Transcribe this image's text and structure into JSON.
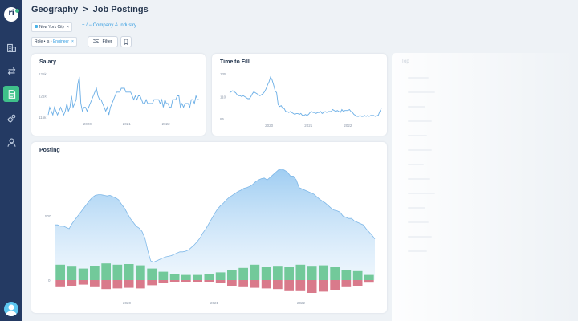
{
  "breadcrumb": {
    "section": "Geography",
    "separator": ">",
    "page": "Job Postings"
  },
  "filters": {
    "location_chip": "New York City",
    "add_link": "+ / − Company & Industry",
    "role_chip_prefix": "Role • is •",
    "role_chip_value": "Engineer",
    "remove_symbol": "×"
  },
  "toolbar": {
    "filter_label": "Filter"
  },
  "cards": {
    "salary": {
      "title": "Salary",
      "chart_data": {
        "type": "line",
        "y_ticks": [
          "125k",
          "121k",
          "115k"
        ],
        "x_ticks": [
          "2020",
          "2021",
          "2022"
        ],
        "color": "#6aaee6",
        "values": [
          116,
          118,
          117,
          116,
          118,
          117,
          116,
          117,
          118,
          117,
          116,
          117,
          119,
          117,
          118,
          121,
          118,
          119,
          120,
          124,
          126,
          119,
          117,
          118,
          118,
          117,
          118,
          119,
          120,
          121,
          122,
          123,
          121,
          120,
          120,
          119,
          118,
          117,
          118,
          116,
          118,
          119,
          120,
          121,
          122,
          122,
          122,
          123,
          123,
          123,
          122,
          122,
          122,
          122,
          121,
          120,
          121,
          120,
          121,
          121,
          120,
          119,
          119,
          120,
          119,
          119,
          119,
          119,
          120,
          120,
          120,
          120,
          119,
          120,
          118,
          120,
          119,
          119,
          118,
          118,
          120,
          120,
          120,
          121,
          121,
          118,
          119,
          118,
          119,
          119,
          119,
          118,
          120,
          120,
          119,
          121,
          120,
          120
        ]
      }
    },
    "time_to_fill": {
      "title": "Time to Fill",
      "chart_data": {
        "type": "line",
        "y_ticks": [
          "135",
          "110",
          "85"
        ],
        "x_ticks": [
          "2020",
          "2021",
          "2022"
        ],
        "color": "#6aaee6",
        "values": [
          116,
          117,
          118,
          117,
          116,
          114,
          113,
          113,
          112,
          113,
          112,
          111,
          110,
          110,
          112,
          115,
          117,
          116,
          115,
          114,
          113,
          114,
          115,
          117,
          120,
          124,
          127,
          132,
          129,
          124,
          118,
          116,
          104,
          102,
          103,
          100,
          100,
          97,
          97,
          96,
          97,
          96,
          95,
          94,
          95,
          95,
          94,
          95,
          93,
          93,
          94,
          93,
          94,
          96,
          97,
          96,
          96,
          95,
          96,
          96,
          97,
          95,
          96,
          97,
          96,
          97,
          97,
          97,
          99,
          98,
          97,
          98,
          97,
          96,
          99,
          97,
          98,
          98,
          98,
          99,
          97,
          96,
          94,
          93,
          92,
          92,
          93,
          92,
          92,
          93,
          92,
          93,
          92,
          93,
          93,
          93,
          92,
          93,
          93,
          97,
          100
        ]
      }
    },
    "posting": {
      "title": "Posting",
      "chart_data": {
        "type": "area",
        "y_ticks": [
          "500",
          "0"
        ],
        "x_ticks": [
          "2020",
          "2021",
          "2022"
        ],
        "color": "#9fcdf2",
        "area_values": [
          430,
          430,
          420,
          420,
          410,
          400,
          440,
          470,
          500,
          530,
          560,
          590,
          620,
          645,
          660,
          665,
          665,
          660,
          655,
          660,
          650,
          640,
          625,
          590,
          560,
          520,
          480,
          450,
          420,
          405,
          380,
          330,
          230,
          150,
          140,
          150,
          160,
          170,
          180,
          185,
          190,
          200,
          210,
          220,
          220,
          225,
          235,
          255,
          275,
          300,
          330,
          370,
          400,
          440,
          480,
          520,
          555,
          580,
          600,
          625,
          645,
          660,
          675,
          690,
          700,
          715,
          720,
          730,
          745,
          765,
          780,
          790,
          795,
          780,
          800,
          820,
          840,
          860,
          865,
          855,
          840,
          810,
          810,
          780,
          720,
          710,
          700,
          690,
          680,
          670,
          650,
          630,
          615,
          600,
          580,
          560,
          545,
          540,
          530,
          500,
          490,
          480,
          480,
          460,
          450,
          440,
          430,
          400,
          375,
          350,
          320
        ],
        "bars": [
          {
            "label": "",
            "up": 120,
            "down": 55
          },
          {
            "label": "",
            "up": 105,
            "down": 45
          },
          {
            "label": "",
            "up": 90,
            "down": 35
          },
          {
            "label": "",
            "up": 110,
            "down": 55
          },
          {
            "label": "",
            "up": 130,
            "down": 70
          },
          {
            "label": "",
            "up": 120,
            "down": 65
          },
          {
            "label": "",
            "up": 125,
            "down": 60
          },
          {
            "label": "",
            "up": 115,
            "down": 65
          },
          {
            "label": "",
            "up": 90,
            "down": 40
          },
          {
            "label": "",
            "up": 65,
            "down": 25
          },
          {
            "label": "",
            "up": 45,
            "down": 15
          },
          {
            "label": "",
            "up": 40,
            "down": 15
          },
          {
            "label": "",
            "up": 40,
            "down": 15
          },
          {
            "label": "",
            "up": 45,
            "down": 15
          },
          {
            "label": "",
            "up": 60,
            "down": 25
          },
          {
            "label": "",
            "up": 80,
            "down": 45
          },
          {
            "label": "",
            "up": 95,
            "down": 55
          },
          {
            "label": "",
            "up": 120,
            "down": 60
          },
          {
            "label": "",
            "up": 100,
            "down": 65
          },
          {
            "label": "",
            "up": 105,
            "down": 70
          },
          {
            "label": "",
            "up": 100,
            "down": 80
          },
          {
            "label": "",
            "up": 120,
            "down": 80
          },
          {
            "label": "",
            "up": 105,
            "down": 100
          },
          {
            "label": "",
            "up": 115,
            "down": 90
          },
          {
            "label": "",
            "up": 100,
            "down": 75
          },
          {
            "label": "",
            "up": 80,
            "down": 55
          },
          {
            "label": "",
            "up": 70,
            "down": 45
          },
          {
            "label": "",
            "up": 40,
            "down": 20
          }
        ],
        "bar_up_color": "#72c99a",
        "bar_down_color": "#d97a8b"
      }
    },
    "top": {
      "title": "Top"
    }
  }
}
